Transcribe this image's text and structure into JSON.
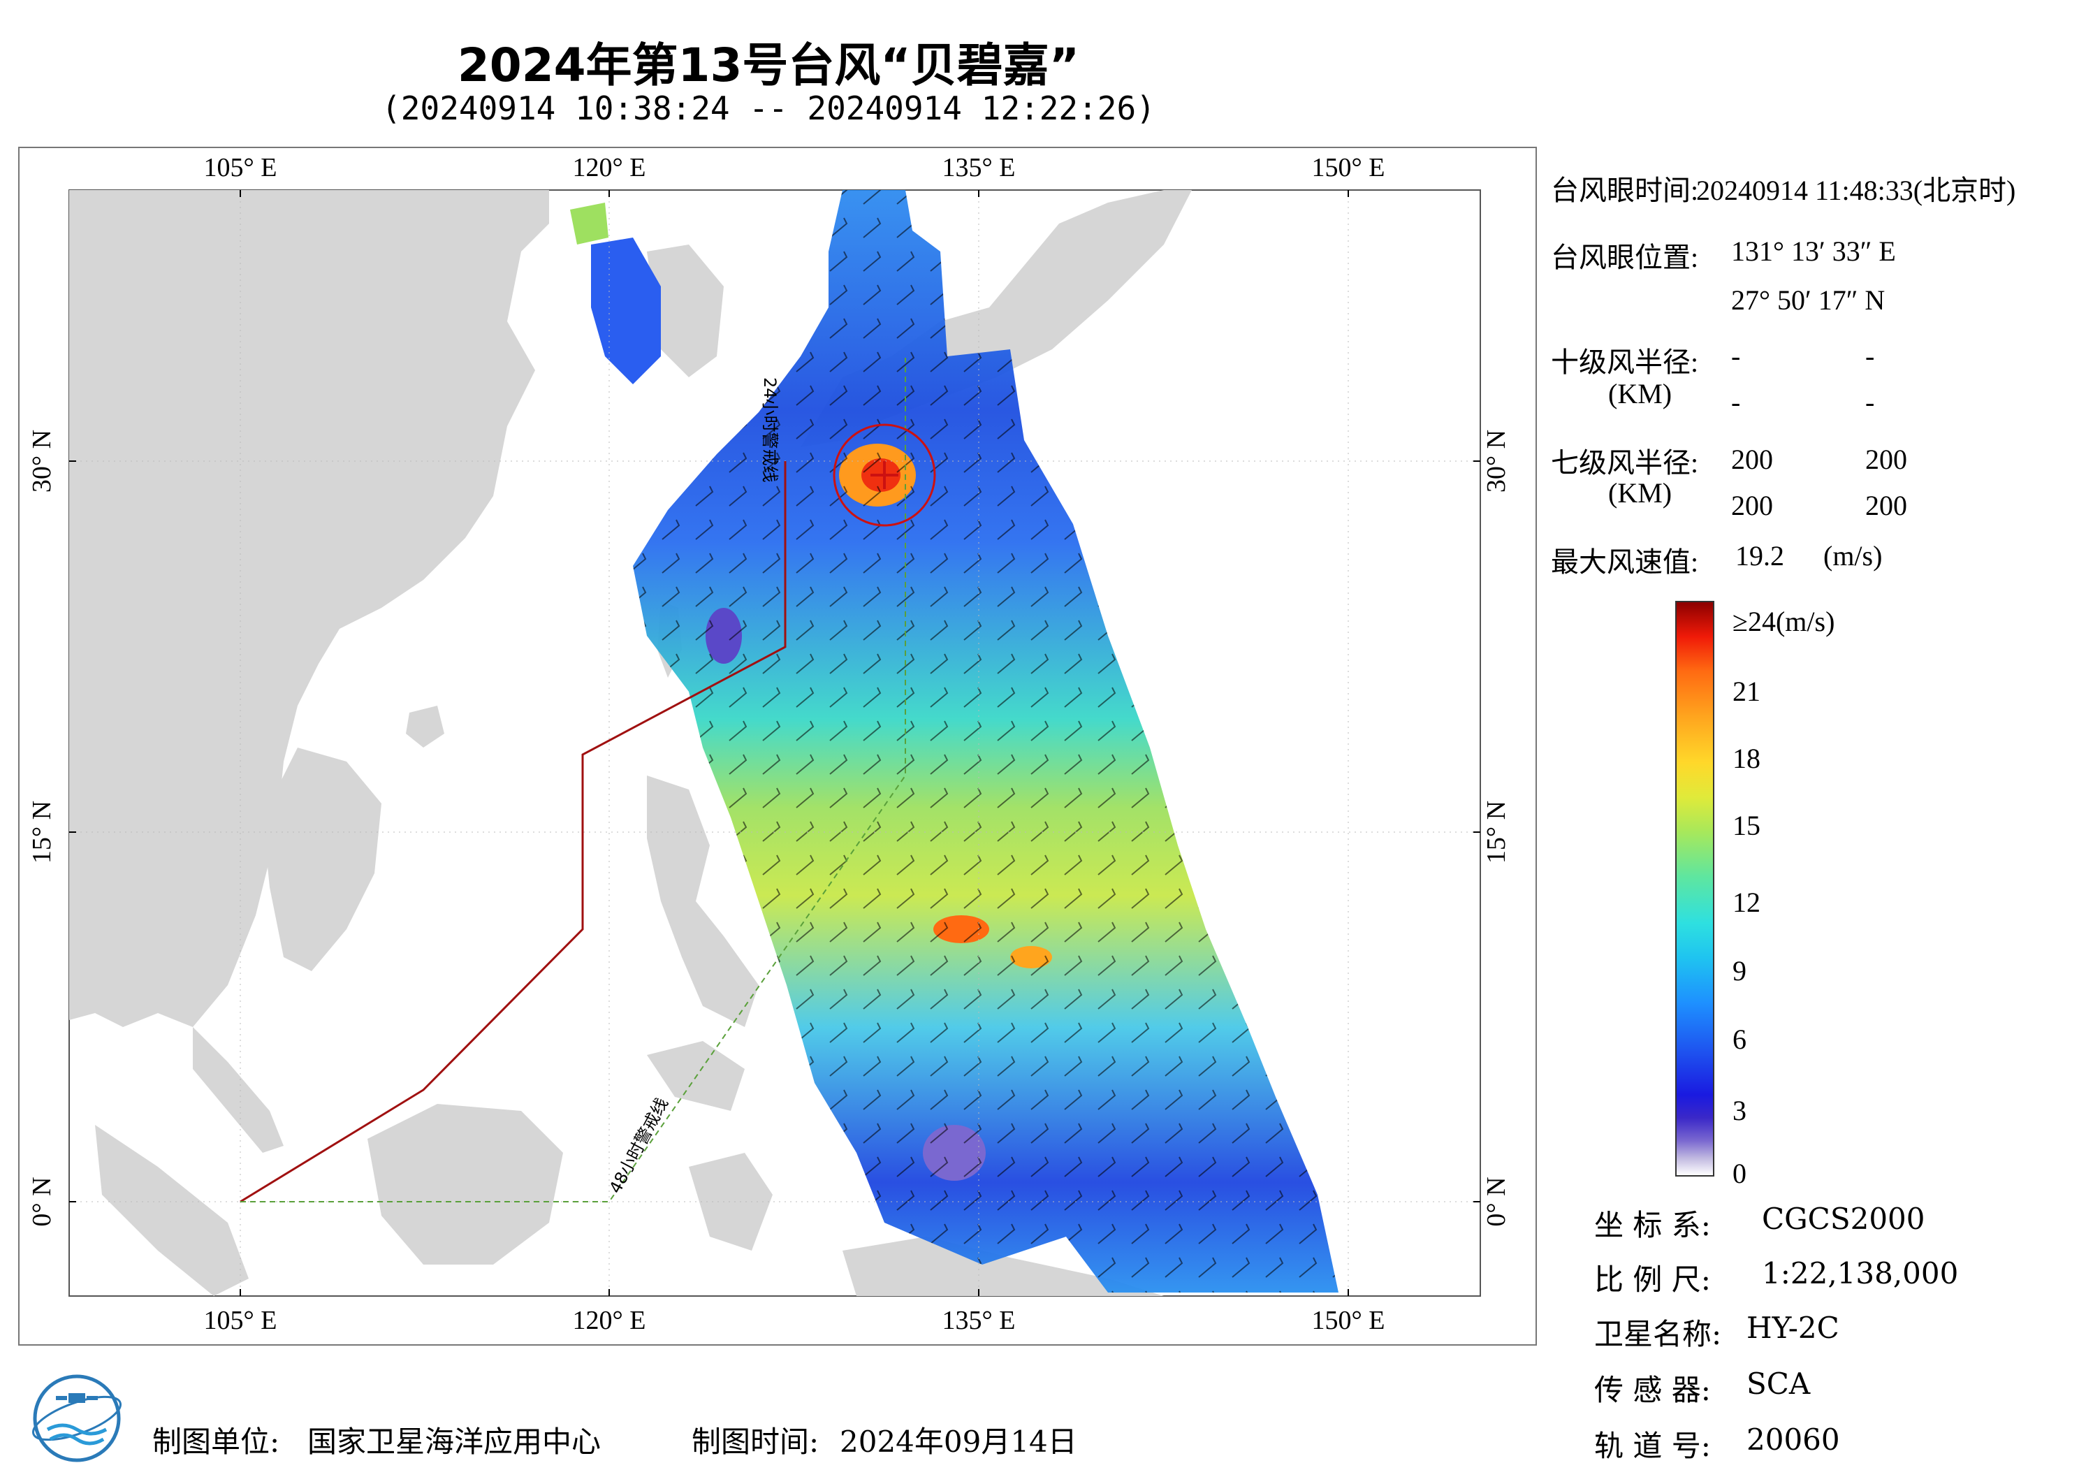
{
  "title": "2024年第13号台风“贝碧嘉”",
  "subtitle": "(20240914 10:38:24 -- 20240914 12:22:26)",
  "map": {
    "lon_ticks": [
      "105° E",
      "120° E",
      "135° E",
      "150° E"
    ],
    "lat_ticks": [
      "30° N",
      "15° N",
      "0° N"
    ],
    "warning_line_24h": "24小时警戒线",
    "warning_line_48h": "48小时警戒线"
  },
  "info": {
    "eye_time_label": "台风眼时间:",
    "eye_time_value": "20240914 11:48:33(北京时)",
    "eye_pos_label": "台风眼位置:",
    "eye_lon": "131° 13′ 33″ E",
    "eye_lat": "27° 50′ 17″ N",
    "r10_label": "十级风半径:",
    "r10_unit": "(KM)",
    "r10_values": [
      "-",
      "-",
      "-",
      "-"
    ],
    "r7_label": "七级风半径:",
    "r7_unit": "(KM)",
    "r7_values": [
      "200",
      "200",
      "200",
      "200"
    ],
    "max_wind_label": "最大风速值:",
    "max_wind_value": "19.2",
    "max_wind_unit": "(m/s)"
  },
  "colorbar": {
    "labels": [
      "≥24(m/s)",
      "21",
      "18",
      "15",
      "12",
      "9",
      "6",
      "3",
      "0"
    ]
  },
  "meta": {
    "crs_label": "坐 标 系:",
    "crs_value": "CGCS2000",
    "scale_label": "比 例 尺:",
    "scale_value": "1:22,138,000",
    "satellite_label": "卫星名称:",
    "satellite_value": "HY-2C",
    "sensor_label": "传 感 器:",
    "sensor_value": "SCA",
    "orbit_label": "轨 道 号:",
    "orbit_value": "20060"
  },
  "footer": {
    "producer_label": "制图单位:",
    "producer_value": "国家卫星海洋应用中心",
    "date_label": "制图时间:",
    "date_value": "2024年09月14日"
  },
  "colors": {
    "land": "#d6d6d6",
    "ocean": "#ffffff",
    "warning_24h": "#a01010",
    "warning_48h": "#5aa03a",
    "typhoon_circle": "#cc1111"
  }
}
